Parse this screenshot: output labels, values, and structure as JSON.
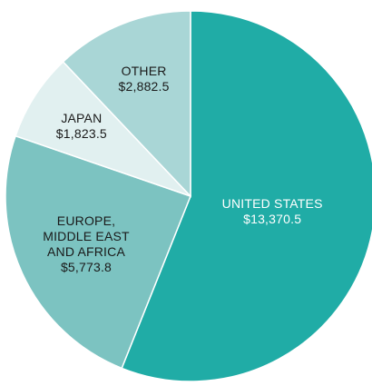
{
  "chart_data": {
    "type": "pie",
    "categories": [
      "UNITED STATES",
      "EUROPE, MIDDLE EAST AND AFRICA",
      "JAPAN",
      "OTHER"
    ],
    "values": [
      13370.5,
      5773.8,
      1823.5,
      2882.5
    ],
    "value_labels": [
      "$13,370.5",
      "$5,773.8",
      "$1,823.5",
      "$2,882.5"
    ],
    "colors": [
      "#20aca6",
      "#7cc3c1",
      "#e1f0f0",
      "#a9d6d6"
    ]
  }
}
